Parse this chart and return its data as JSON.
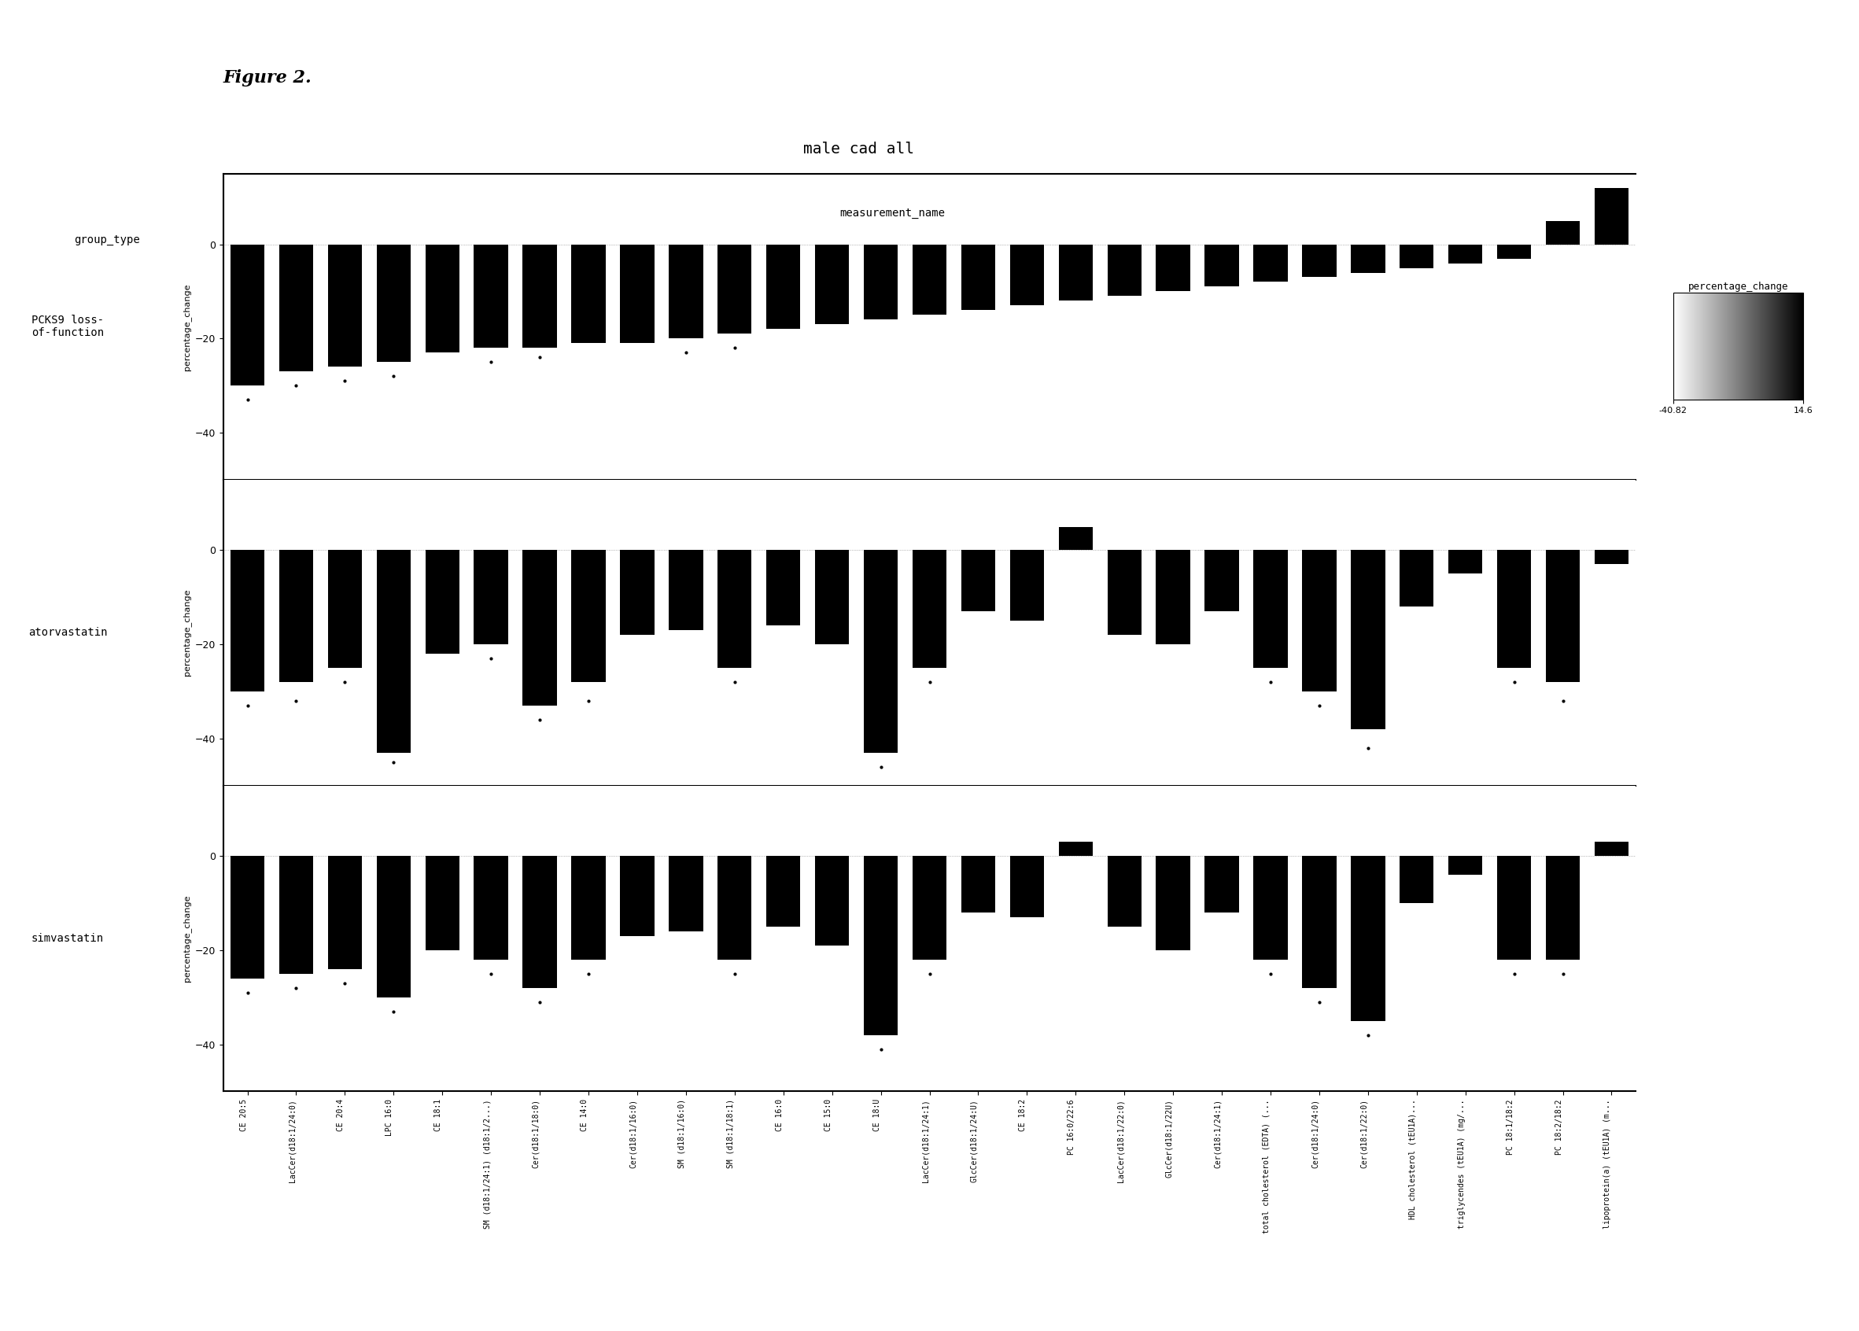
{
  "title": "male cad all",
  "figure_label": "Figure 2.",
  "xlabel": "measurement_name",
  "ylabel": "percentage_change",
  "group_label": "group_type",
  "colorbar_label": "percentage_change",
  "colorbar_min": -40.82,
  "colorbar_max": 14.6,
  "groups": [
    "PCKS9 loss-\nof-function",
    "atorvastatin",
    "simvastatin"
  ],
  "measurements": [
    "CE 20:5",
    "LacCer(d18:1/24:0)",
    "CE 20:4",
    "LPC 16:0",
    "CE 18:1",
    "SM (d18:1/24:1) (d18:1/2...)",
    "Cer(d18:1/18:0)",
    "CE 14:0",
    "Cer(d18:1/16:0)",
    "SM (d18:1/16:0)",
    "SM (d18:1/18:1)",
    "CE 16:0",
    "CE 15:0",
    "CE 18:U",
    "LacCer(d18:1/24:1)",
    "GlcCer(d18:1/24:U)",
    "CE 18:2",
    "PC 16:0/22:6",
    "LacCer(d18:1/22:0)",
    "GlcCer(d18:1/22U)",
    "Cer(d18:1/24:1)",
    "total cholesterol (EDTA) (...",
    "Cer(d18:1/24:0)",
    "Cer(d18:1/22:0)",
    "HDL cholesterol (tEU1A)...",
    "triglycendes (tEU1A) (mg/...",
    "PC 18:1/18:2",
    "PC 18:2/18:2",
    "lipoprotein(a) (tEU1A) (m..."
  ],
  "data": {
    "PCKS9 loss-\nof-function": [
      -30,
      -27,
      -26,
      -25,
      -23,
      -22,
      -22,
      -21,
      -21,
      -20,
      -19,
      -18,
      -17,
      -16,
      -15,
      -14,
      -13,
      -12,
      -11,
      -10,
      -9,
      -8,
      -7,
      -6,
      -5,
      -4,
      -3,
      5,
      12
    ],
    "atorvastatin": [
      -30,
      -28,
      -25,
      -43,
      -22,
      -20,
      -33,
      -28,
      -18,
      -17,
      -25,
      -16,
      -20,
      -43,
      -25,
      -13,
      -15,
      5,
      -18,
      -20,
      -13,
      -25,
      -30,
      -38,
      -12,
      -5,
      -25,
      -28,
      -3
    ],
    "simvastatin": [
      -26,
      -25,
      -24,
      -30,
      -20,
      -22,
      -28,
      -22,
      -17,
      -16,
      -22,
      -15,
      -19,
      -38,
      -22,
      -12,
      -13,
      3,
      -15,
      -20,
      -12,
      -22,
      -28,
      -35,
      -10,
      -4,
      -22,
      -22,
      3
    ]
  },
  "scatter_data": {
    "PCKS9 loss-\nof-function": [
      -33,
      -30,
      -29,
      -28,
      null,
      -25,
      -24,
      null,
      null,
      -23,
      -22,
      null,
      null,
      null,
      null,
      null,
      null,
      null,
      null,
      null,
      null,
      null,
      null,
      null,
      null,
      null,
      null,
      null,
      null
    ],
    "atorvastatin": [
      -33,
      -32,
      -28,
      -45,
      null,
      -23,
      -36,
      -32,
      null,
      null,
      -28,
      null,
      null,
      -46,
      -28,
      null,
      null,
      null,
      null,
      null,
      null,
      -28,
      -33,
      -42,
      null,
      null,
      -28,
      -32,
      null
    ],
    "simvastatin": [
      -29,
      -28,
      -27,
      -33,
      null,
      -25,
      -31,
      -25,
      null,
      null,
      -25,
      null,
      null,
      -41,
      -25,
      null,
      null,
      null,
      null,
      null,
      null,
      -25,
      -31,
      -38,
      null,
      null,
      -25,
      -25,
      null
    ]
  },
  "bar_color": "#000000",
  "background_color": "#ffffff",
  "grid_color": "#cccccc",
  "ylim": [
    -50,
    15
  ],
  "yticks": [
    -40,
    -20,
    0
  ],
  "dotted_line_color": "#888888"
}
